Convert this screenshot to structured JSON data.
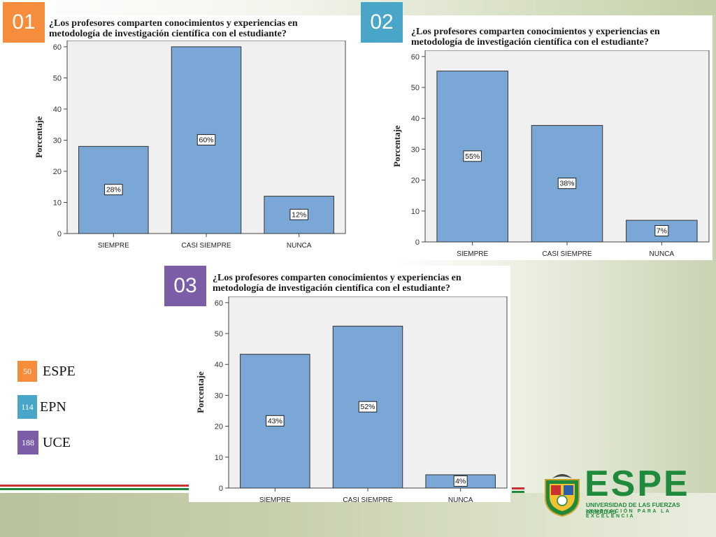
{
  "chart_data": [
    {
      "type": "bar",
      "label": "01",
      "title": "¿Los profesores comparten conocimientos y experiencias en metodología de investigación científica con el estudiante?",
      "ylabel": "Porcentaje",
      "xlabel": "",
      "categories": [
        "SIEMPRE",
        "CASI SIEMPRE",
        "NUNCA"
      ],
      "values": [
        28,
        60,
        12
      ],
      "data_labels": [
        "28%",
        "60%",
        "12%"
      ],
      "ylim": [
        0,
        62
      ],
      "yticks": [
        0,
        10,
        20,
        30,
        40,
        50,
        60
      ],
      "bar_color": "#7aa7d6",
      "label_color": "#f58d3d"
    },
    {
      "type": "bar",
      "label": "02",
      "title": "¿Los profesores comparten conocimientos y experiencias en metodología de investigación científica con el estudiante?",
      "ylabel": "Porcentaje",
      "xlabel": "",
      "categories": [
        "SIEMPRE",
        "CASI SIEMPRE",
        "NUNCA"
      ],
      "values": [
        55.3,
        37.7,
        7.0
      ],
      "data_labels": [
        "55%",
        "38%",
        "7%"
      ],
      "ylim": [
        0,
        62
      ],
      "yticks": [
        0,
        10,
        20,
        30,
        40,
        50,
        60
      ],
      "bar_color": "#7aa7d6",
      "label_color": "#4aa6c8"
    },
    {
      "type": "bar",
      "label": "03",
      "title": "¿Los profesores comparten conocimientos y experiencias en metodología de investigación científica con el estudiante?",
      "ylabel": "Porcentaje",
      "xlabel": "",
      "categories": [
        "SIEMPRE",
        "CASI SIEMPRE",
        "NUNCA"
      ],
      "values": [
        43.3,
        52.4,
        4.3
      ],
      "data_labels": [
        "43%",
        "52%",
        "4%"
      ],
      "ylim": [
        0,
        62
      ],
      "yticks": [
        0,
        10,
        20,
        30,
        40,
        50,
        60
      ],
      "bar_color": "#7aa7d6",
      "label_color": "#7b5ea7"
    }
  ],
  "legend": [
    {
      "count": "50",
      "name": "ESPE",
      "color": "#f58d3d"
    },
    {
      "count": "114",
      "name": "EPN",
      "color": "#4aa6c8"
    },
    {
      "count": "188",
      "name": "UCE",
      "color": "#7b5ea7"
    }
  ],
  "logo": {
    "name": "ESPE",
    "subtitle": "UNIVERSIDAD DE LAS FUERZAS ARMADAS",
    "tagline": "INNOVACIÓN PARA LA EXCELENCIA",
    "color": "#1f8a3c"
  }
}
